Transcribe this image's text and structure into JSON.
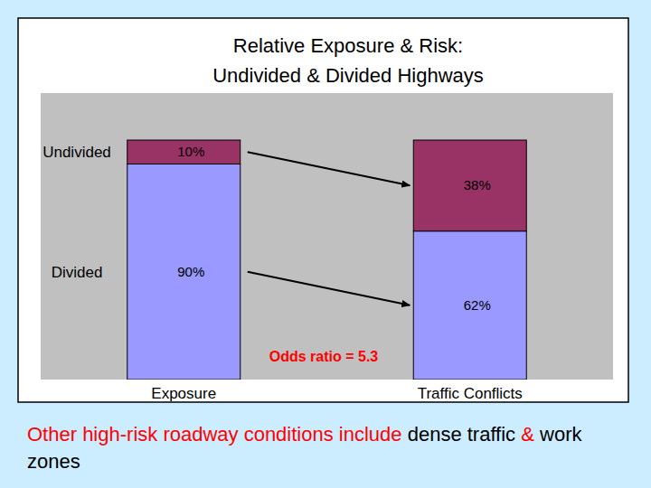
{
  "chart_data": {
    "type": "bar",
    "title": "Relative Exposure & Risk:\nUndivided & Divided Highways",
    "categories": [
      "Exposure",
      "Traffic Conflicts"
    ],
    "series": [
      {
        "name": "Undivided",
        "color": "#993366",
        "values": [
          10,
          38
        ],
        "value_labels": [
          "10%",
          "38%"
        ]
      },
      {
        "name": "Divided",
        "color": "#9999ff",
        "values": [
          90,
          62
        ],
        "value_labels": [
          "90%",
          "62%"
        ]
      }
    ],
    "ylim": [
      0,
      100
    ],
    "stacked": true,
    "data_labels": true,
    "tick_labels": "x",
    "annotations": [
      "Odds ratio = 5.3"
    ]
  },
  "caption": [
    {
      "text": "Other high-risk roadway conditions include",
      "color": "#ff0000"
    },
    {
      "text": "dense traffic",
      "color": "#000000"
    },
    {
      "text": "&",
      "color": "#ff0000"
    },
    {
      "text": "work zones",
      "color": "#000000"
    }
  ]
}
